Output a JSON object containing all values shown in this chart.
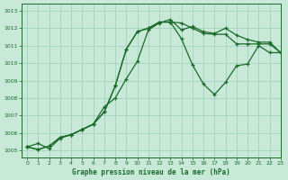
{
  "title": "Graphe pression niveau de la mer (hPa)",
  "bg_color": "#c8e8d8",
  "grid_color": "#99ccbb",
  "line_color": "#1a6b2a",
  "xlim": [
    -0.5,
    23
  ],
  "ylim": [
    1004.6,
    1013.4
  ],
  "yticks": [
    1005,
    1006,
    1007,
    1008,
    1009,
    1010,
    1011,
    1012,
    1013
  ],
  "xticks": [
    0,
    1,
    2,
    3,
    4,
    5,
    6,
    7,
    8,
    9,
    10,
    11,
    12,
    13,
    14,
    15,
    16,
    17,
    18,
    19,
    20,
    21,
    22,
    23
  ],
  "line1": [
    1005.2,
    1005.4,
    1005.1,
    1005.7,
    1005.9,
    1006.2,
    1006.5,
    1007.5,
    1008.0,
    1009.1,
    1010.1,
    1011.9,
    1012.3,
    1012.5,
    1011.9,
    1012.1,
    1011.8,
    1011.7,
    1012.0,
    1011.6,
    1011.35,
    1011.2,
    1011.2,
    1010.6
  ],
  "line2": [
    1005.2,
    1005.05,
    1005.25,
    1005.75,
    1005.9,
    1006.2,
    1006.5,
    1007.2,
    1008.7,
    1010.8,
    1011.8,
    1012.0,
    1012.35,
    1012.35,
    1012.3,
    1012.0,
    1011.7,
    1011.65,
    1011.65,
    1011.1,
    1011.1,
    1011.1,
    1011.1,
    1010.6
  ],
  "line3": [
    1005.2,
    1005.05,
    1005.25,
    1005.75,
    1005.9,
    1006.2,
    1006.5,
    1007.2,
    1008.7,
    1010.8,
    1011.8,
    1012.0,
    1012.35,
    1012.35,
    1011.4,
    1009.9,
    1008.8,
    1008.2,
    1008.9,
    1009.85,
    1009.95,
    1011.0,
    1010.6,
    1010.6
  ]
}
